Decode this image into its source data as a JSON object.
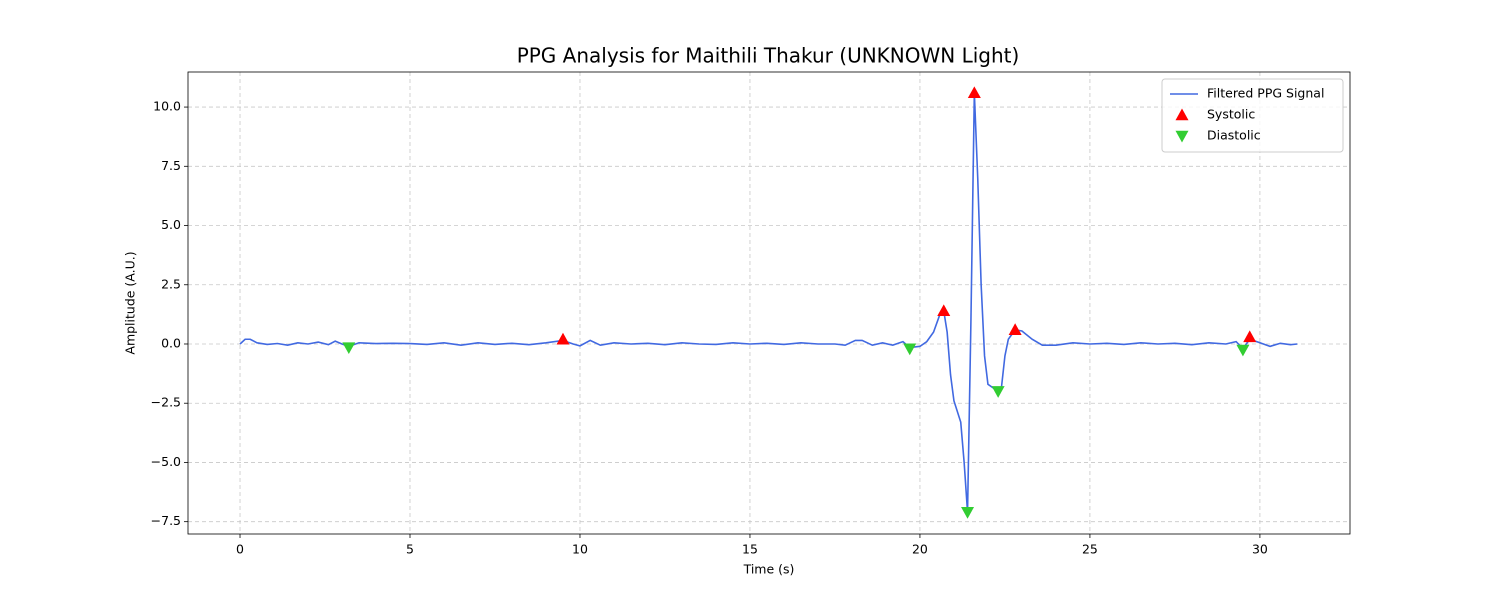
{
  "chart_data": {
    "type": "line",
    "title": "PPG Analysis for Maithili Thakur (UNKNOWN Light)",
    "x_label": "Time (s)",
    "y_label": "Amplitude (A.U.)",
    "xlim": [
      -1.53,
      32.65
    ],
    "ylim": [
      -8.02,
      11.48
    ],
    "xticks": [
      0,
      5,
      10,
      15,
      20,
      25,
      30
    ],
    "yticks": [
      {
        "value": -7.5,
        "label": "−7.5"
      },
      {
        "value": -5,
        "label": "−5.0"
      },
      {
        "value": -2.5,
        "label": "−2.5"
      },
      {
        "value": 0,
        "label": "0.0"
      },
      {
        "value": 2.5,
        "label": "2.5"
      },
      {
        "value": 5,
        "label": "5.0"
      },
      {
        "value": 7.5,
        "label": "7.5"
      },
      {
        "value": 10,
        "label": "10.0"
      }
    ],
    "grid": true,
    "legend": "upper right",
    "series": [
      {
        "name": "Filtered PPG Signal",
        "color": "#4169e1",
        "x": [
          0,
          0.15,
          0.3,
          0.5,
          0.8,
          1.1,
          1.4,
          1.7,
          2.0,
          2.3,
          2.6,
          2.8,
          3.0,
          3.2,
          3.5,
          4.0,
          4.5,
          5.0,
          5.5,
          6.0,
          6.5,
          7.0,
          7.5,
          8.0,
          8.5,
          9.0,
          9.5,
          9.8,
          10.0,
          10.3,
          10.6,
          11.0,
          11.5,
          12.0,
          12.5,
          13.0,
          13.5,
          14.0,
          14.5,
          15.0,
          15.5,
          16.0,
          16.5,
          17.0,
          17.5,
          17.8,
          18.1,
          18.3,
          18.6,
          18.9,
          19.2,
          19.5,
          19.7,
          20.0,
          20.2,
          20.4,
          20.6,
          20.7,
          20.8,
          20.9,
          21.0,
          21.2,
          21.3,
          21.4,
          21.5,
          21.6,
          21.7,
          21.8,
          21.9,
          22.0,
          22.2,
          22.3,
          22.4,
          22.5,
          22.6,
          22.8,
          23.0,
          23.3,
          23.6,
          24.0,
          24.5,
          25.0,
          25.5,
          26.0,
          26.5,
          27.0,
          27.5,
          28.0,
          28.5,
          29.0,
          29.3,
          29.5,
          29.7,
          30.0,
          30.3,
          30.6,
          30.9,
          31.1
        ],
        "values": [
          0,
          0.2,
          0.2,
          0.05,
          -0.02,
          0.02,
          -0.05,
          0.05,
          0,
          0.08,
          -0.03,
          0.12,
          0,
          -0.1,
          0.05,
          0.02,
          0.03,
          0.02,
          -0.02,
          0.05,
          -0.05,
          0.05,
          -0.02,
          0.03,
          -0.03,
          0.05,
          0.15,
          0,
          -0.08,
          0.15,
          -0.05,
          0.05,
          0,
          0.03,
          -0.03,
          0.05,
          0,
          -0.02,
          0.05,
          0,
          0.03,
          -0.02,
          0.05,
          0,
          0,
          -0.05,
          0.15,
          0.15,
          -0.05,
          0.05,
          -0.05,
          0.1,
          -0.15,
          -0.1,
          0.1,
          0.5,
          1.3,
          1.4,
          0.5,
          -1.3,
          -2.4,
          -3.3,
          -5.0,
          -7.1,
          1.0,
          10.6,
          7.0,
          2.5,
          -0.5,
          -1.7,
          -1.9,
          -2.0,
          -1.8,
          -0.5,
          0.2,
          0.6,
          0.55,
          0.2,
          -0.05,
          -0.05,
          0.05,
          0,
          0.03,
          -0.02,
          0.05,
          0,
          0.03,
          -0.03,
          0.05,
          0,
          0.1,
          -0.2,
          0.2,
          0.05,
          -0.1,
          0.03,
          -0.03,
          0
        ]
      }
    ],
    "markers": [
      {
        "name": "Systolic",
        "color": "#ff0000",
        "marker": "triangle-up",
        "x": [
          9.5,
          20.7,
          21.6,
          22.8,
          29.7
        ],
        "values": [
          0.2,
          1.4,
          10.6,
          0.6,
          0.3
        ]
      },
      {
        "name": "Diastolic",
        "color": "#32cd32",
        "marker": "triangle-down",
        "x": [
          3.2,
          19.7,
          21.4,
          22.3,
          29.5
        ],
        "values": [
          -0.15,
          -0.2,
          -7.1,
          -2.0,
          -0.25
        ]
      }
    ]
  }
}
